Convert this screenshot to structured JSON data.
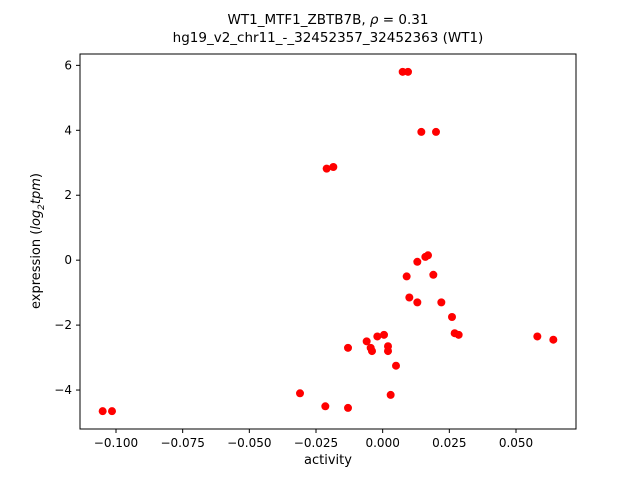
{
  "title_parts": {
    "prefix": "WT1_MTF1_ZBTB7B, ",
    "rho": "ρ",
    "suffix": " = 0.31"
  },
  "subtitle": "hg19_v2_chr11_-_32452357_32452363 (WT1)",
  "ylabel_parts": {
    "prefix": "expression (",
    "log": "log",
    "sub": "2",
    "tpm": "tpm",
    "suffix": ")"
  },
  "chart_data": {
    "type": "scatter",
    "title": "WT1_MTF1_ZBTB7B, ρ = 0.31",
    "subtitle": "hg19_v2_chr11_-_32452357_32452363 (WT1)",
    "xlabel": "activity",
    "ylabel": "expression (log2 tpm)",
    "xlim": [
      -0.1135,
      0.0725
    ],
    "ylim": [
      -5.2,
      6.35
    ],
    "grid": false,
    "legend": "none",
    "marker_color": "#ff0000",
    "marker_radius": 4,
    "xticks": [
      -0.1,
      -0.075,
      -0.05,
      -0.025,
      0.0,
      0.025,
      0.05
    ],
    "xtick_labels": [
      "−0.100",
      "−0.075",
      "−0.050",
      "−0.025",
      "0.000",
      "0.025",
      "0.050"
    ],
    "yticks": [
      -4,
      -2,
      0,
      2,
      4,
      6
    ],
    "ytick_labels": [
      "−4",
      "−2",
      "0",
      "2",
      "4",
      "6"
    ],
    "points": [
      [
        -0.105,
        -4.65
      ],
      [
        -0.1015,
        -4.65
      ],
      [
        -0.031,
        -4.1
      ],
      [
        -0.0215,
        -4.5
      ],
      [
        -0.013,
        -4.55
      ],
      [
        -0.021,
        2.82
      ],
      [
        -0.0185,
        2.87
      ],
      [
        -0.013,
        -2.7
      ],
      [
        -0.006,
        -2.5
      ],
      [
        -0.0045,
        -2.7
      ],
      [
        -0.004,
        -2.8
      ],
      [
        -0.002,
        -2.35
      ],
      [
        0.0005,
        -2.3
      ],
      [
        0.002,
        -2.65
      ],
      [
        0.002,
        -2.8
      ],
      [
        0.003,
        -4.15
      ],
      [
        0.005,
        -3.25
      ],
      [
        0.0075,
        5.8
      ],
      [
        0.0095,
        5.8
      ],
      [
        0.009,
        -0.5
      ],
      [
        0.01,
        -1.15
      ],
      [
        0.013,
        -1.3
      ],
      [
        0.013,
        -0.05
      ],
      [
        0.0145,
        3.95
      ],
      [
        0.016,
        0.1
      ],
      [
        0.017,
        0.15
      ],
      [
        0.019,
        -0.45
      ],
      [
        0.02,
        3.95
      ],
      [
        0.022,
        -1.3
      ],
      [
        0.026,
        -1.75
      ],
      [
        0.027,
        -2.25
      ],
      [
        0.0285,
        -2.3
      ],
      [
        0.058,
        -2.35
      ],
      [
        0.064,
        -2.45
      ]
    ]
  }
}
